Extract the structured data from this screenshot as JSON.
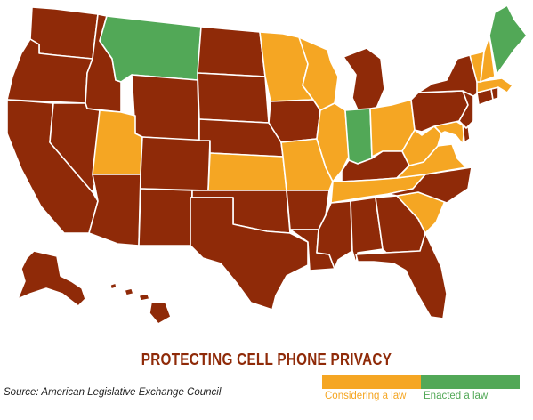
{
  "map": {
    "title": "PROTECTING CELL PHONE PRIVACY",
    "source": "Source: American Legislative Exchange Council",
    "legend": [
      {
        "key": "considering",
        "label": "Considering a law",
        "color": "#f5a623"
      },
      {
        "key": "enacted",
        "label": "Enacted a law",
        "color": "#52a857"
      }
    ],
    "colors": {
      "none": "#8f2a08",
      "considering": "#f5a623",
      "enacted": "#52a857",
      "title": "#8f2a08",
      "background": "#ffffff"
    },
    "state_status": {
      "WA": "none",
      "OR": "none",
      "CA": "none",
      "ID": "none",
      "NV": "none",
      "MT": "enacted",
      "WY": "none",
      "UT": "considering",
      "AZ": "none",
      "CO": "none",
      "NM": "none",
      "ND": "none",
      "SD": "none",
      "NE": "none",
      "KS": "considering",
      "OK": "none",
      "TX": "none",
      "MN": "considering",
      "IA": "none",
      "MO": "considering",
      "AR": "none",
      "LA": "none",
      "WI": "considering",
      "IL": "considering",
      "MI": "none",
      "IN": "enacted",
      "OH": "considering",
      "KY": "none",
      "TN": "considering",
      "MS": "none",
      "AL": "none",
      "GA": "none",
      "FL": "none",
      "SC": "considering",
      "NC": "none",
      "VA": "considering",
      "WV": "considering",
      "MD": "considering",
      "DE": "none",
      "PA": "none",
      "NJ": "none",
      "NY": "none",
      "CT": "none",
      "RI": "none",
      "MA": "considering",
      "VT": "considering",
      "NH": "considering",
      "ME": "enacted",
      "AK": "none",
      "HI": "none"
    }
  }
}
